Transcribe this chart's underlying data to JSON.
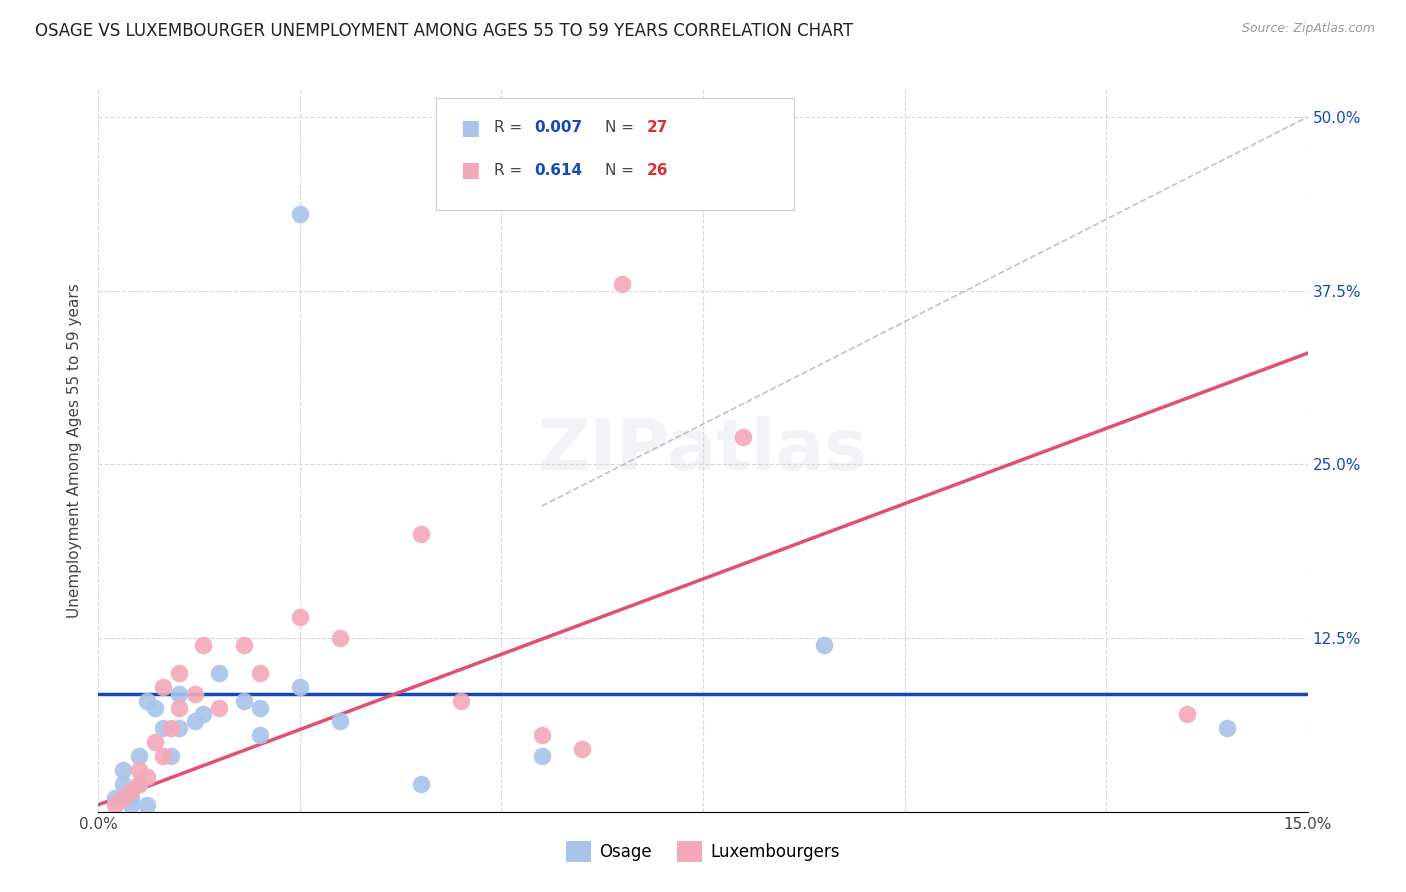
{
  "title": "OSAGE VS LUXEMBOURGER UNEMPLOYMENT AMONG AGES 55 TO 59 YEARS CORRELATION CHART",
  "source": "Source: ZipAtlas.com",
  "ylabel": "Unemployment Among Ages 55 to 59 years",
  "xlim": [
    0.0,
    0.15
  ],
  "ylim": [
    0.0,
    0.52
  ],
  "xticks": [
    0.0,
    0.025,
    0.05,
    0.075,
    0.1,
    0.125,
    0.15
  ],
  "xticklabels": [
    "0.0%",
    "",
    "",
    "",
    "",
    "",
    "15.0%"
  ],
  "yticks_right": [
    0.0,
    0.125,
    0.25,
    0.375,
    0.5
  ],
  "yticklabels_right": [
    "",
    "12.5%",
    "25.0%",
    "37.5%",
    "50.0%"
  ],
  "osage_color": "#a8c4e8",
  "luxembourger_color": "#f4a8b8",
  "osage_line_color": "#1448bb",
  "luxembourger_line_color": "#e05070",
  "dashed_line_color": "#c8b0b8",
  "legend_R_color": "#1448bb",
  "legend_N_color": "#dd3030",
  "osage_R": "0.007",
  "osage_N": "27",
  "luxembourger_R": "0.614",
  "luxembourger_N": "26",
  "osage_scatter_x": [
    0.002,
    0.003,
    0.003,
    0.004,
    0.004,
    0.005,
    0.005,
    0.006,
    0.006,
    0.007,
    0.008,
    0.009,
    0.01,
    0.01,
    0.012,
    0.013,
    0.015,
    0.018,
    0.02,
    0.02,
    0.025,
    0.025,
    0.03,
    0.04,
    0.055,
    0.09,
    0.14
  ],
  "osage_scatter_y": [
    0.01,
    0.02,
    0.03,
    0.005,
    0.01,
    0.02,
    0.04,
    0.005,
    0.08,
    0.075,
    0.06,
    0.04,
    0.06,
    0.085,
    0.065,
    0.07,
    0.1,
    0.08,
    0.055,
    0.075,
    0.43,
    0.09,
    0.065,
    0.02,
    0.04,
    0.12,
    0.06
  ],
  "luxembourger_scatter_x": [
    0.002,
    0.003,
    0.004,
    0.005,
    0.005,
    0.006,
    0.007,
    0.008,
    0.008,
    0.009,
    0.01,
    0.01,
    0.012,
    0.013,
    0.015,
    0.018,
    0.02,
    0.025,
    0.03,
    0.04,
    0.045,
    0.055,
    0.06,
    0.065,
    0.08,
    0.135
  ],
  "luxembourger_scatter_y": [
    0.005,
    0.01,
    0.015,
    0.02,
    0.03,
    0.025,
    0.05,
    0.04,
    0.09,
    0.06,
    0.075,
    0.1,
    0.085,
    0.12,
    0.075,
    0.12,
    0.1,
    0.14,
    0.125,
    0.2,
    0.08,
    0.055,
    0.045,
    0.38,
    0.27,
    0.07
  ],
  "osage_line_x": [
    0.0,
    0.15
  ],
  "osage_line_y": [
    0.085,
    0.085
  ],
  "luxembourger_line_x": [
    0.0,
    0.15
  ],
  "luxembourger_line_y": [
    0.005,
    0.33
  ],
  "dashed_line_x": [
    0.055,
    0.15
  ],
  "dashed_line_y": [
    0.22,
    0.5
  ],
  "background_color": "#ffffff",
  "grid_color": "#d8d8d8"
}
